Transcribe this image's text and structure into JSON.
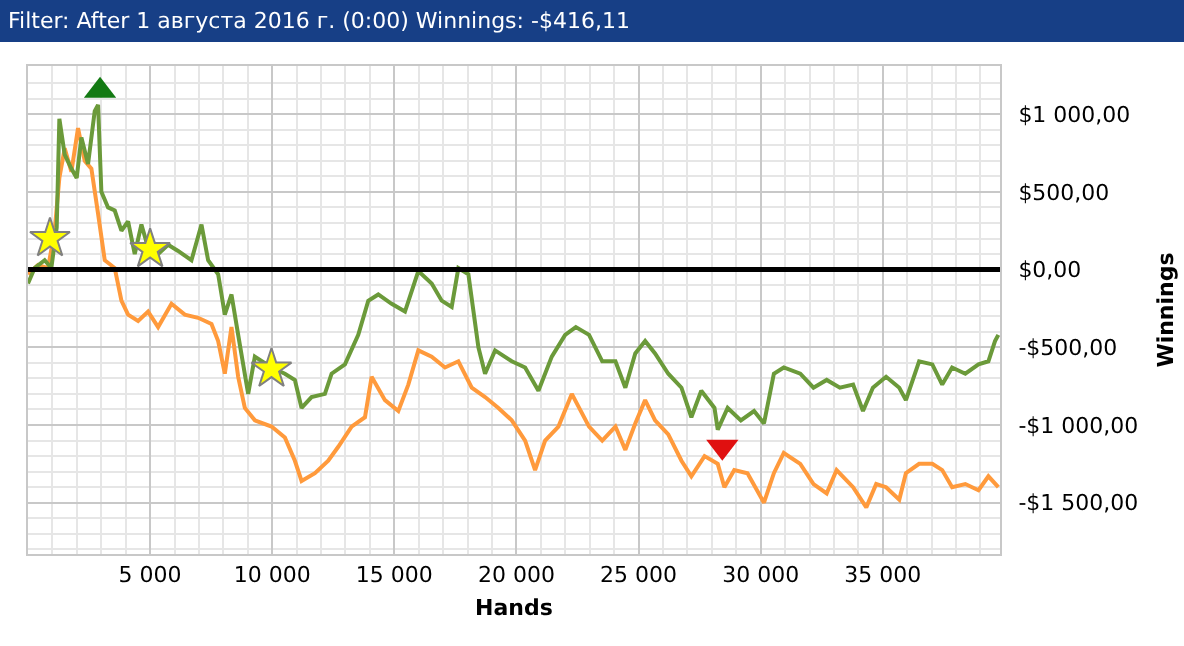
{
  "chart_data": {
    "type": "line",
    "title": "Filter: After 1 августа 2016 г. (0:00) Winnings: -$416,11",
    "xlabel": "Hands",
    "ylabel": "Winnings",
    "xlim": [
      0,
      39800
    ],
    "ylim": [
      -1830,
      1310
    ],
    "xticks": [
      {
        "value": 5000,
        "label": "5 000"
      },
      {
        "value": 10000,
        "label": "10 000"
      },
      {
        "value": 15000,
        "label": "15 000"
      },
      {
        "value": 20000,
        "label": "20 000"
      },
      {
        "value": 25000,
        "label": "25 000"
      },
      {
        "value": 30000,
        "label": "30 000"
      },
      {
        "value": 35000,
        "label": "35 000"
      }
    ],
    "yticks": [
      {
        "value": 1000,
        "label": "$1 000,00"
      },
      {
        "value": 500,
        "label": "$500,00"
      },
      {
        "value": 0,
        "label": "$0,00"
      },
      {
        "value": -500,
        "label": "-$500,00"
      },
      {
        "value": -1000,
        "label": "-$1 000,00"
      },
      {
        "value": -1500,
        "label": "-$1 500,00"
      }
    ],
    "grid": true,
    "marker": "none",
    "line_style": "solid",
    "ref_lines": [
      {
        "axis": "y",
        "value": 0,
        "color": "#000000"
      }
    ],
    "series": [
      {
        "color": "#ff9a3c",
        "x": [
          0,
          410,
          820,
          1093,
          1284,
          1503,
          1776,
          2049,
          2322,
          2595,
          2869,
          3142,
          3552,
          3825,
          4098,
          4508,
          4918,
          5328,
          5874,
          6420,
          6967,
          7513,
          7786,
          8059,
          8332,
          8606,
          8879,
          9289,
          9972,
          10518,
          10928,
          11201,
          11748,
          12294,
          12704,
          13250,
          13797,
          14070,
          14616,
          15163,
          15573,
          15982,
          16529,
          17075,
          17622,
          18169,
          18715,
          19261,
          19808,
          20355,
          20764,
          21174,
          21720,
          22267,
          22973,
          23513,
          24054,
          24459,
          24865,
          25270,
          25676,
          26216,
          26757,
          27162,
          27703,
          28243,
          28514,
          28919,
          29460,
          30136,
          30541,
          30946,
          31622,
          32163,
          32703,
          33109,
          33785,
          34325,
          34731,
          35136,
          35677,
          35947,
          36488,
          37028,
          37434,
          37839,
          38380,
          38920,
          39325,
          39731
        ],
        "values": [
          -30,
          30,
          10,
          250,
          590,
          780,
          630,
          910,
          700,
          650,
          360,
          60,
          10,
          -200,
          -290,
          -330,
          -270,
          -370,
          -220,
          -290,
          -310,
          -350,
          -460,
          -670,
          -370,
          -690,
          -890,
          -970,
          -1010,
          -1080,
          -1230,
          -1360,
          -1310,
          -1230,
          -1140,
          -1010,
          -950,
          -690,
          -840,
          -910,
          -740,
          -520,
          -560,
          -630,
          -590,
          -760,
          -820,
          -890,
          -970,
          -1100,
          -1290,
          -1100,
          -1010,
          -800,
          -1010,
          -1100,
          -1010,
          -1160,
          -990,
          -840,
          -970,
          -1060,
          -1230,
          -1330,
          -1200,
          -1250,
          -1400,
          -1290,
          -1310,
          -1500,
          -1310,
          -1180,
          -1250,
          -1380,
          -1440,
          -1290,
          -1400,
          -1530,
          -1380,
          -1400,
          -1480,
          -1310,
          -1250,
          -1250,
          -1290,
          -1400,
          -1380,
          -1420,
          -1330,
          -1400
        ]
      },
      {
        "color": "#6b9a3a",
        "x": [
          0,
          273,
          683,
          956,
          1175,
          1284,
          1503,
          1776,
          1994,
          2186,
          2459,
          2732,
          2869,
          3005,
          3278,
          3552,
          3825,
          4098,
          4371,
          4644,
          4918,
          5328,
          5737,
          6147,
          6693,
          7103,
          7376,
          7786,
          8059,
          8332,
          8606,
          9016,
          9289,
          9972,
          10518,
          10928,
          11201,
          11611,
          12157,
          12431,
          12977,
          13523,
          13933,
          14343,
          14889,
          15436,
          15982,
          16529,
          16939,
          17349,
          17622,
          18032,
          18442,
          18715,
          19125,
          19808,
          20355,
          20901,
          21447,
          21994,
          22432,
          22973,
          23513,
          24054,
          24459,
          24865,
          25270,
          25676,
          26216,
          26757,
          27162,
          27568,
          28108,
          28243,
          28649,
          29190,
          29730,
          30136,
          30541,
          30946,
          31622,
          32163,
          32703,
          33244,
          33785,
          34190,
          34596,
          35136,
          35677,
          35947,
          36488,
          37028,
          37434,
          37839,
          38380,
          38920,
          39325,
          39596,
          39731
        ],
        "values": [
          -90,
          10,
          60,
          10,
          270,
          970,
          740,
          650,
          590,
          850,
          680,
          1020,
          1060,
          500,
          400,
          380,
          250,
          310,
          100,
          290,
          140,
          100,
          160,
          120,
          60,
          290,
          60,
          -30,
          -290,
          -160,
          -420,
          -800,
          -560,
          -630,
          -670,
          -710,
          -890,
          -820,
          -800,
          -670,
          -610,
          -420,
          -200,
          -160,
          -220,
          -270,
          -10,
          -90,
          -200,
          -240,
          10,
          -30,
          -500,
          -670,
          -520,
          -590,
          -630,
          -780,
          -560,
          -420,
          -370,
          -420,
          -590,
          -590,
          -760,
          -540,
          -460,
          -540,
          -670,
          -760,
          -950,
          -780,
          -890,
          -1030,
          -890,
          -970,
          -910,
          -990,
          -670,
          -630,
          -670,
          -760,
          -710,
          -760,
          -740,
          -910,
          -760,
          -690,
          -760,
          -840,
          -590,
          -610,
          -740,
          -630,
          -670,
          -610,
          -590,
          -460,
          -420
        ]
      },
      {
        "type": "scatter",
        "marker": "star",
        "color": "#ffff00",
        "x": [
          900,
          5000,
          9970
        ],
        "values": [
          200,
          130,
          -640
        ]
      },
      {
        "type": "scatter",
        "marker": "triangle",
        "color": "#137a13",
        "x": [
          2950
        ],
        "values": [
          1150
        ]
      },
      {
        "type": "scatter",
        "marker": "triangle-down",
        "color": "#e01010",
        "x": [
          28430
        ],
        "values": [
          -1140
        ]
      }
    ]
  }
}
